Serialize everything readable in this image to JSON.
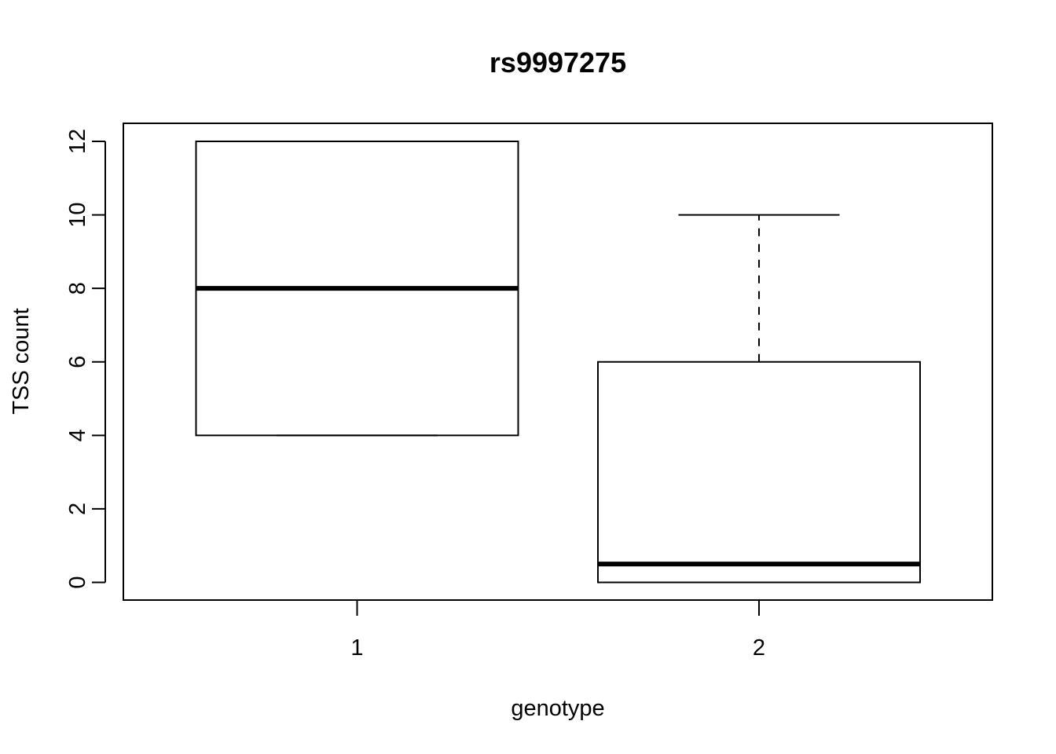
{
  "chart_data": {
    "type": "boxplot",
    "title": "rs9997275",
    "xlabel": "genotype",
    "ylabel": "TSS count",
    "ylim": [
      -0.5,
      12.5
    ],
    "yticks": [
      0,
      2,
      4,
      6,
      8,
      10,
      12
    ],
    "yticklabels": [
      "0",
      "2",
      "4",
      "6",
      "8",
      "10",
      "12"
    ],
    "categories": [
      "1",
      "2"
    ],
    "boxes": [
      {
        "category": "1",
        "whisker_low": 4,
        "q1": 4,
        "median": 8,
        "q3": 12,
        "whisker_high": 12
      },
      {
        "category": "2",
        "whisker_low": 0,
        "q1": 0,
        "median": 0.5,
        "q3": 6,
        "whisker_high": 10
      }
    ],
    "grid": false,
    "legend": "none"
  }
}
